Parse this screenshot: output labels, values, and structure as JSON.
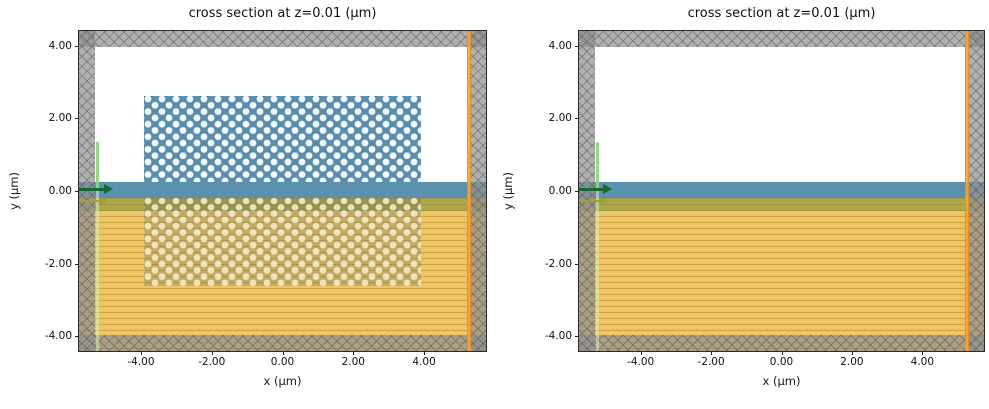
{
  "panels": [
    {
      "title": "cross section at z=0.01 (μm)",
      "xlabel": "x (μm)",
      "ylabel": "y (μm)",
      "x_ticks": [
        "-4.00",
        "-2.00",
        "0.00",
        "2.00",
        "4.00"
      ],
      "y_ticks": [
        "4.00",
        "2.00",
        "0.00",
        "-2.00",
        "-4.00"
      ],
      "has_hole_arrays": true
    },
    {
      "title": "cross section at z=0.01 (μm)",
      "xlabel": "x (μm)",
      "ylabel": "y (μm)",
      "x_ticks": [
        "-4.00",
        "-2.00",
        "0.00",
        "2.00",
        "4.00"
      ],
      "y_ticks": [
        "4.00",
        "2.00",
        "0.00",
        "-2.00",
        "-4.00"
      ],
      "has_hole_arrays": false
    }
  ],
  "colors": {
    "substrate_orange": "#ecc15c",
    "substrate_hatch_line": "#c9962c",
    "slab_blue": "#4e87a8",
    "hole_region_blue": "#528aab",
    "hole_white": "#ffffff",
    "olive_band": "#6e873c",
    "pml_gray": "#919191",
    "source_green": "#8cd782",
    "source_arrow_dark_green": "#176733",
    "source_arrow_olive": "#9aa03c",
    "monitor_orange": "#f4a432",
    "axes_text": "#111111",
    "background": "#ffffff"
  },
  "chart_data": [
    {
      "type": "heatmap",
      "subtype": "simulation-cross-section",
      "title": "cross section at z=0.01 (μm)",
      "xlabel": "x (μm)",
      "ylabel": "y (μm)",
      "xlim": [
        -5.75,
        5.75
      ],
      "ylim": [
        -4.4,
        4.4
      ],
      "x_ticks": [
        -4,
        -2,
        0,
        2,
        4
      ],
      "y_ticks": [
        -4,
        -2,
        0,
        2,
        4
      ],
      "grid": false,
      "legend": "none",
      "regions": [
        {
          "name": "pml-frame",
          "shape": "border-frame",
          "thickness_um": 0.45,
          "color": "#919191",
          "hatch": "xx"
        },
        {
          "name": "substrate-oxide",
          "x": [
            -5.75,
            5.75
          ],
          "y": [
            -4.4,
            -0.2
          ],
          "color": "#ecc15c",
          "hatch": "--"
        },
        {
          "name": "shallow-etch-band",
          "x": [
            -5.75,
            5.75
          ],
          "y": [
            -0.55,
            -0.2
          ],
          "color": "#6e873c"
        },
        {
          "name": "waveguide-slab",
          "x": [
            -5.75,
            5.75
          ],
          "y": [
            -0.2,
            0.25
          ],
          "color": "#4e87a8"
        },
        {
          "name": "hole-array-upper",
          "x": [
            -3.9,
            3.9
          ],
          "y": [
            0.25,
            2.6
          ],
          "color": "#528aab",
          "pattern": "white circular holes, triangular lattice, pitch ~0.4 μm, hole diameter ~0.18 μm"
        },
        {
          "name": "hole-array-lower",
          "x": [
            -3.9,
            3.9
          ],
          "y": [
            -2.6,
            -0.2
          ],
          "color": "#6d705f",
          "pattern": "pale circular holes, triangular lattice, pitch ~0.4 μm"
        },
        {
          "name": "source-line",
          "x": [
            -5.28,
            -5.28
          ],
          "y": [
            0.0,
            1.35
          ],
          "color": "#8cd782"
        },
        {
          "name": "source-arrow",
          "from_x": -5.75,
          "to_x": -4.8,
          "y": 0.05,
          "direction": "+x",
          "color": "#176733"
        },
        {
          "name": "source-arrow-secondary",
          "from_x": -5.75,
          "to_x": -4.95,
          "y": -0.3,
          "direction": "+x",
          "color": "#9aa03c"
        },
        {
          "name": "monitor-line",
          "x": [
            5.2,
            5.2
          ],
          "y": [
            -4.4,
            4.4
          ],
          "color": "#f4a432"
        }
      ]
    },
    {
      "type": "heatmap",
      "subtype": "simulation-cross-section",
      "title": "cross section at z=0.01 (μm)",
      "xlabel": "x (μm)",
      "ylabel": "y (μm)",
      "xlim": [
        -5.75,
        5.75
      ],
      "ylim": [
        -4.4,
        4.4
      ],
      "x_ticks": [
        -4,
        -2,
        0,
        2,
        4
      ],
      "y_ticks": [
        -4,
        -2,
        0,
        2,
        4
      ],
      "grid": false,
      "legend": "none",
      "regions": [
        {
          "name": "pml-frame",
          "shape": "border-frame",
          "thickness_um": 0.45,
          "color": "#919191",
          "hatch": "xx"
        },
        {
          "name": "substrate-oxide",
          "x": [
            -5.75,
            5.75
          ],
          "y": [
            -4.4,
            -0.2
          ],
          "color": "#ecc15c",
          "hatch": "--"
        },
        {
          "name": "shallow-etch-band",
          "x": [
            -5.75,
            5.75
          ],
          "y": [
            -0.55,
            -0.2
          ],
          "color": "#6e873c"
        },
        {
          "name": "waveguide-slab",
          "x": [
            -5.75,
            5.75
          ],
          "y": [
            -0.2,
            0.25
          ],
          "color": "#4e87a8"
        },
        {
          "name": "source-line",
          "x": [
            -5.28,
            -5.28
          ],
          "y": [
            0.0,
            1.35
          ],
          "color": "#8cd782"
        },
        {
          "name": "source-arrow",
          "from_x": -5.75,
          "to_x": -4.8,
          "y": 0.05,
          "direction": "+x",
          "color": "#176733"
        },
        {
          "name": "source-arrow-secondary",
          "from_x": -5.75,
          "to_x": -4.95,
          "y": -0.3,
          "direction": "+x",
          "color": "#9aa03c"
        },
        {
          "name": "monitor-line",
          "x": [
            5.2,
            5.2
          ],
          "y": [
            -4.4,
            4.4
          ],
          "color": "#f4a432"
        }
      ]
    }
  ]
}
